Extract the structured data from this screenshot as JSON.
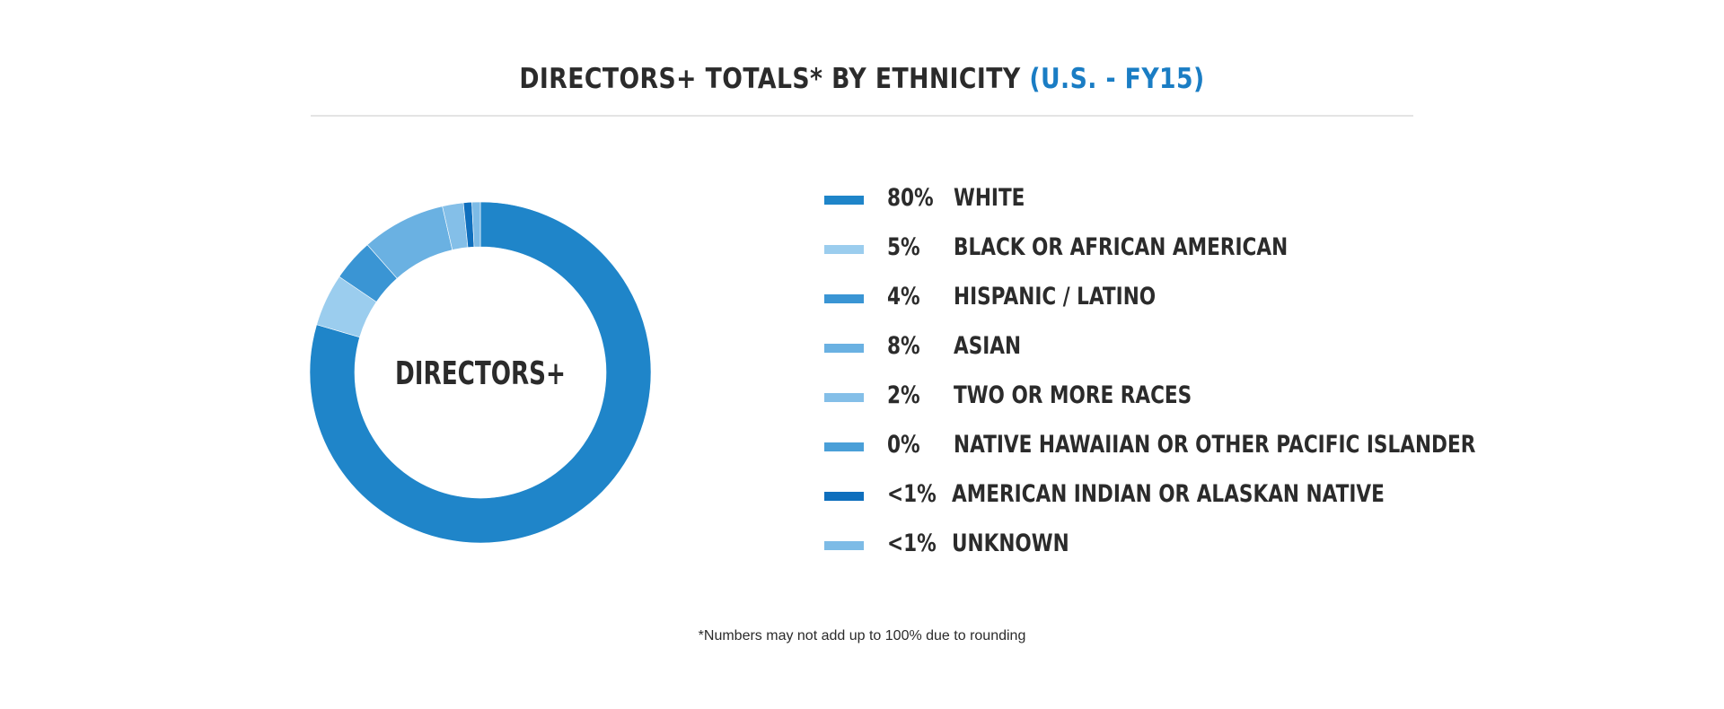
{
  "header": {
    "title_main": "DIRECTORS+ TOTALS* BY ETHNICITY",
    "title_accent": "(U.S. - FY15)"
  },
  "donut_center_label": "DIRECTORS+",
  "footnote": "*Numbers may not add up to 100% due to rounding",
  "colors": {
    "accent": "#1a7dc4",
    "text": "#2b2b2b",
    "rule": "#e4e4e4"
  },
  "chart_data": {
    "type": "pie",
    "variant": "donut",
    "title": "DIRECTORS+ TOTALS* BY ETHNICITY (U.S. - FY15)",
    "series": [
      {
        "label": "WHITE",
        "value_label": "80%",
        "value": 80,
        "color": "#1f85c9"
      },
      {
        "label": "BLACK OR AFRICAN AMERICAN",
        "value_label": "5%",
        "value": 5,
        "color": "#9bcdee"
      },
      {
        "label": "HISPANIC / LATINO",
        "value_label": "4%",
        "value": 4,
        "color": "#3a95d4"
      },
      {
        "label": "ASIAN",
        "value_label": "8%",
        "value": 8,
        "color": "#6ab1e2"
      },
      {
        "label": "TWO OR MORE RACES",
        "value_label": "2%",
        "value": 2,
        "color": "#84bfe8"
      },
      {
        "label": "NATIVE HAWAIIAN OR OTHER PACIFIC ISLANDER",
        "value_label": "0%",
        "value": 0,
        "color": "#4a9fd8"
      },
      {
        "label": "AMERICAN INDIAN OR ALASKAN NATIVE",
        "value_label": "<1%",
        "value": 0.8,
        "color": "#0f6fbd"
      },
      {
        "label": "UNKNOWN",
        "value_label": "<1%",
        "value": 0.8,
        "color": "#7dbbe6"
      }
    ],
    "slice_order": [
      "WHITE",
      "BLACK OR AFRICAN AMERICAN",
      "HISPANIC / LATINO",
      "ASIAN",
      "TWO OR MORE RACES",
      "NATIVE HAWAIIAN OR OTHER PACIFIC ISLANDER",
      "AMERICAN INDIAN OR ALASKAN NATIVE",
      "UNKNOWN"
    ],
    "legend_position": "right"
  }
}
